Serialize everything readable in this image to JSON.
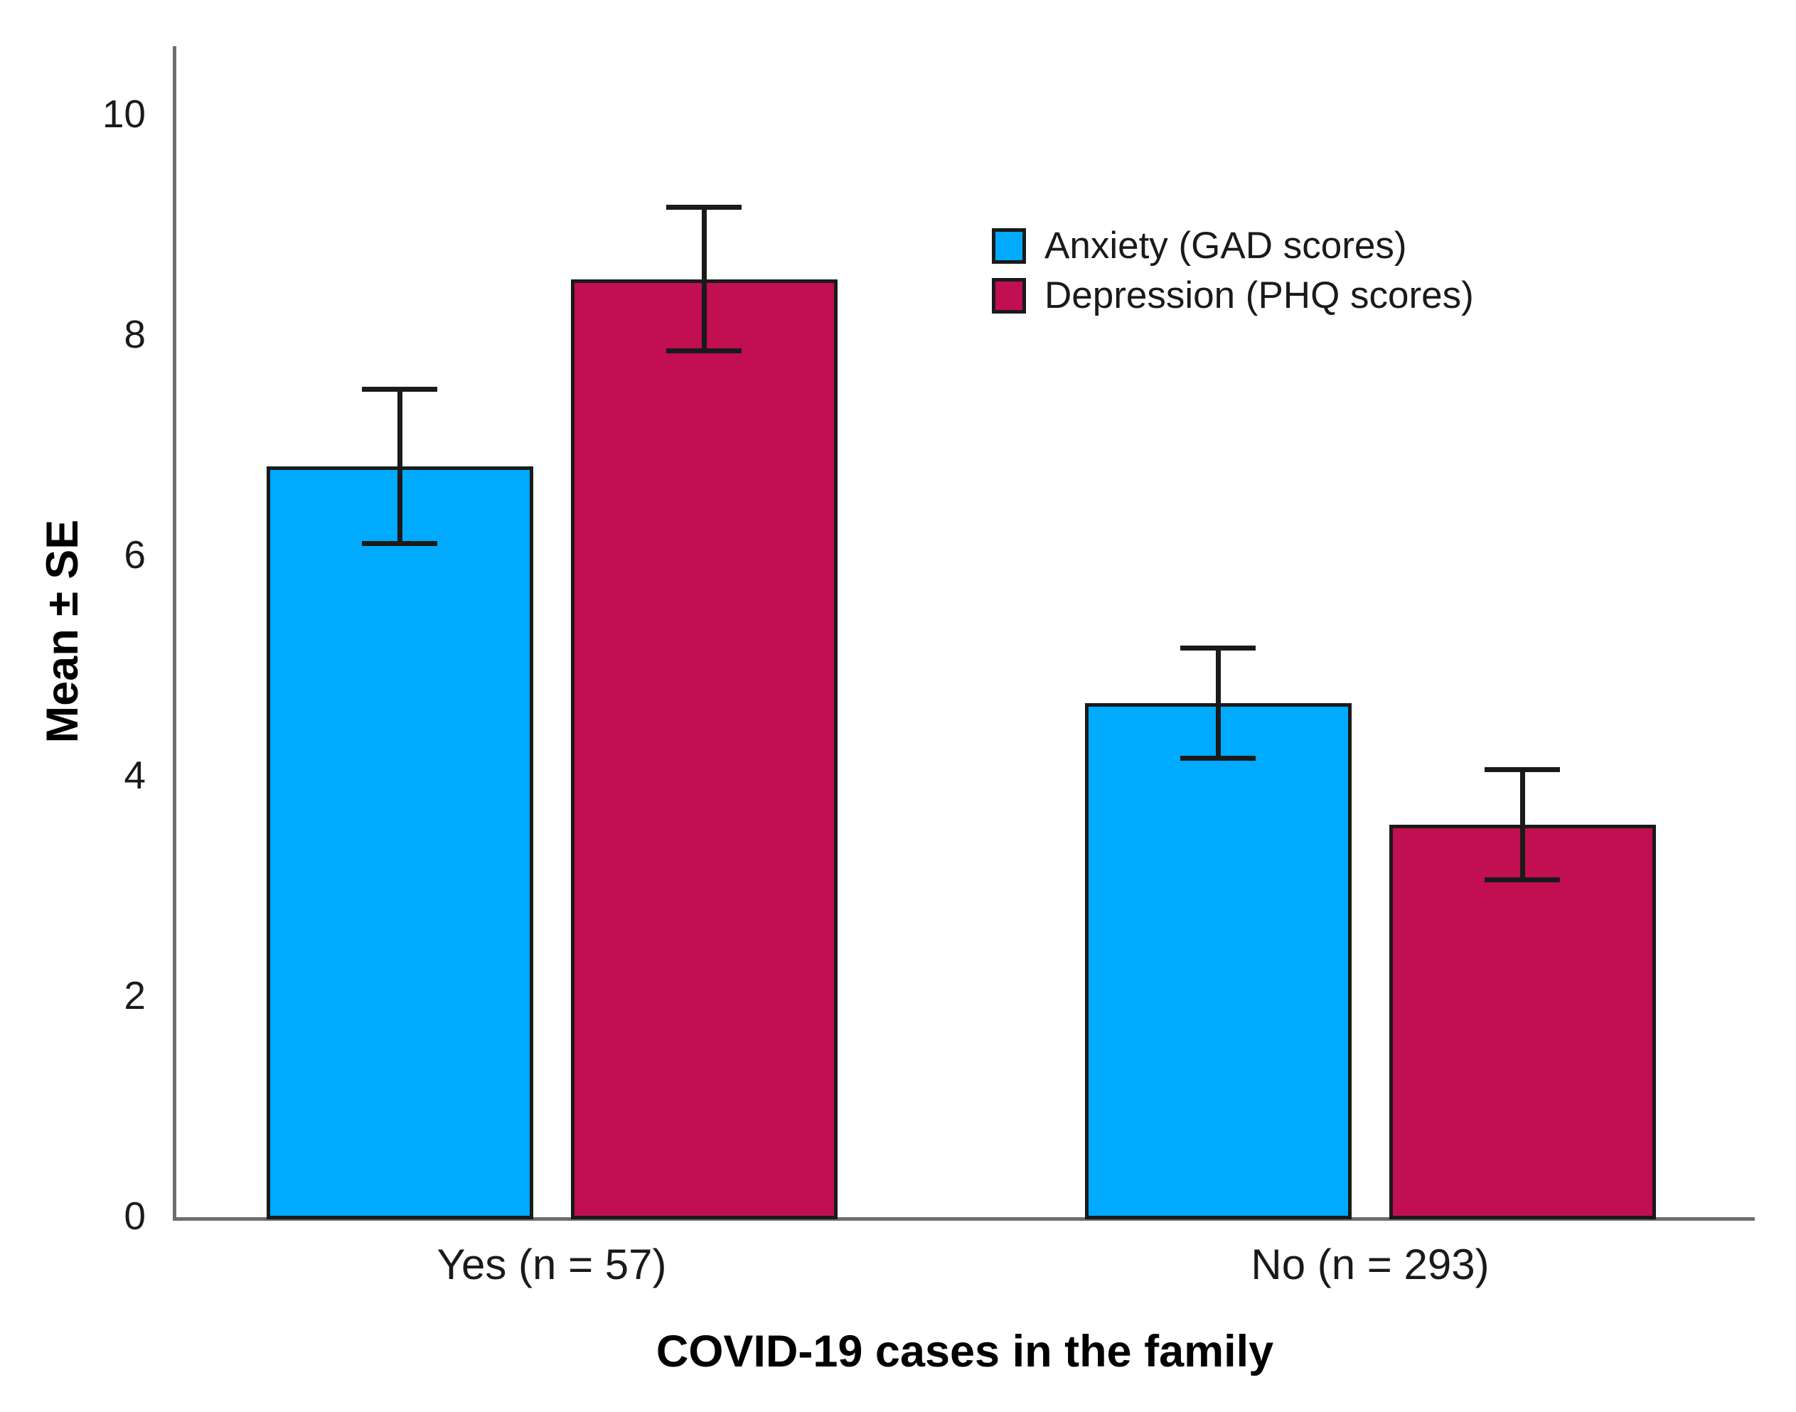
{
  "chart_data": {
    "type": "bar",
    "title": "",
    "xlabel": "COVID-19 cases in the family",
    "ylabel": "Mean ± SE",
    "categories": [
      "Yes (n = 57)",
      "No (n = 293)"
    ],
    "series": [
      {
        "name": "Anxiety (GAD scores)",
        "color": "#00AAFF",
        "values": [
          6.8,
          4.65
        ],
        "se": [
          0.7,
          0.5
        ]
      },
      {
        "name": "Depression (PHQ scores)",
        "color": "#C10F52",
        "values": [
          8.5,
          3.55
        ],
        "se": [
          0.65,
          0.5
        ]
      }
    ],
    "yticks": [
      0,
      2,
      4,
      6,
      8,
      10
    ],
    "ylim": [
      0,
      10.6
    ],
    "grid": false,
    "legend_position": "upper-center-right",
    "error_bar_color": "#1a1a1a",
    "axis_color": "#6e6e6e"
  }
}
